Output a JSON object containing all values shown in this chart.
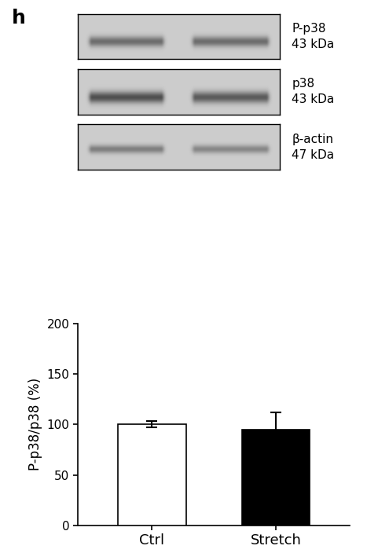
{
  "panel_label": "h",
  "panel_label_fontsize": 18,
  "panel_label_bold": true,
  "blot_labels": [
    "P-p38\n43 kDa",
    "p38\n43 kDa",
    "β-actin\n47 kDa"
  ],
  "blot_label_fontsize": 11,
  "blot_bg_color": "#cbcbcb",
  "blot_border_color": "#000000",
  "bar_categories": [
    "Ctrl",
    "Stretch"
  ],
  "bar_values": [
    100.0,
    95.0
  ],
  "bar_errors": [
    3.0,
    17.0
  ],
  "bar_colors": [
    "#ffffff",
    "#000000"
  ],
  "bar_edge_color": "#000000",
  "bar_width": 0.55,
  "ylabel": "P-p38/p38 (%)",
  "ylabel_fontsize": 12,
  "xlabel_fontsize": 13,
  "ylim": [
    0,
    200
  ],
  "yticks": [
    0,
    50,
    100,
    150,
    200
  ],
  "error_capsize": 5,
  "error_linewidth": 1.5,
  "error_color": "#000000",
  "background_color": "#ffffff",
  "axis_linewidth": 1.2,
  "fig_width": 4.95,
  "fig_height": 7.04
}
